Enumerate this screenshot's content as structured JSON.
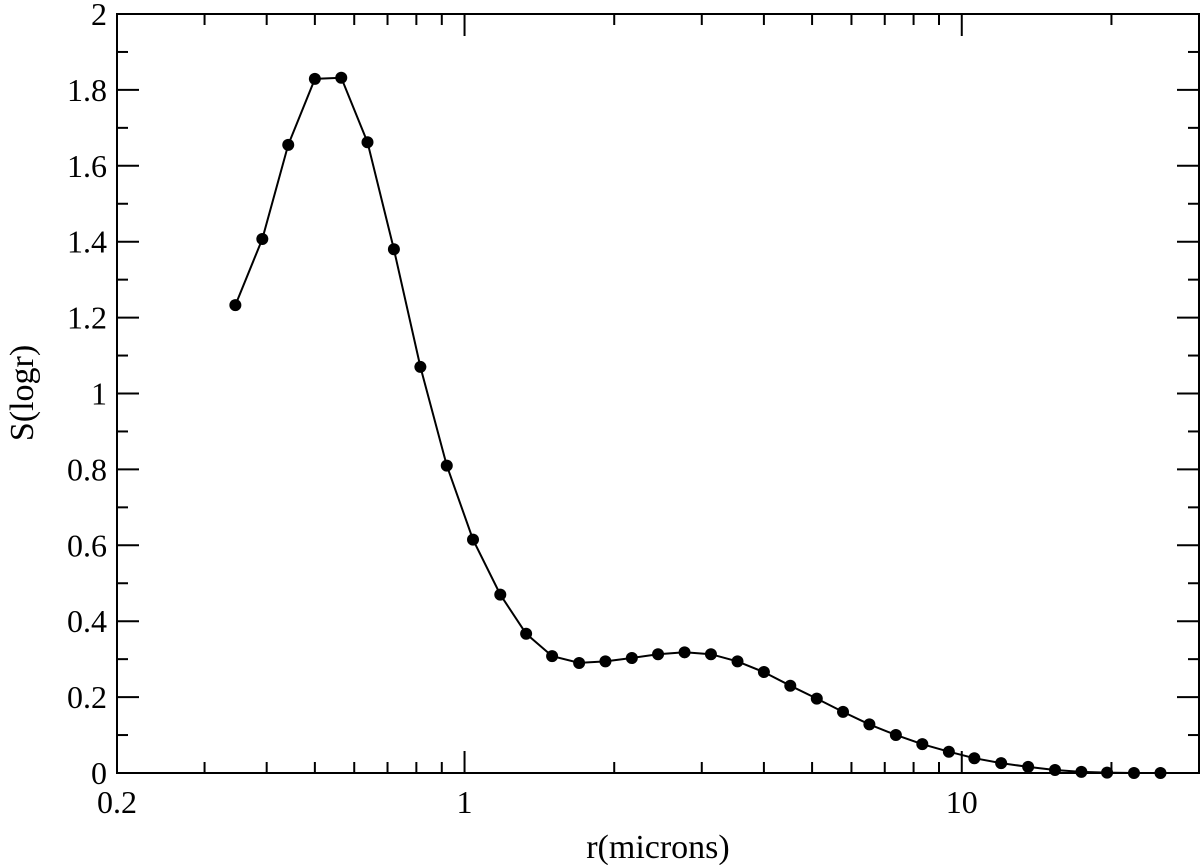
{
  "chart_data": {
    "type": "line",
    "xlabel": "r(microns)",
    "ylabel": "S(logr)",
    "x_scale": "log",
    "xlim": [
      0.2,
      30
    ],
    "ylim": [
      0,
      2
    ],
    "x_tick_labels": [
      {
        "value": 0.2,
        "label": "0.2"
      },
      {
        "value": 1,
        "label": "1"
      },
      {
        "value": 10,
        "label": "10"
      }
    ],
    "y_tick_labels": [
      {
        "value": 0,
        "label": "0"
      },
      {
        "value": 0.2,
        "label": "0.2"
      },
      {
        "value": 0.4,
        "label": "0.4"
      },
      {
        "value": 0.6,
        "label": "0.6"
      },
      {
        "value": 0.8,
        "label": "0.8"
      },
      {
        "value": 1,
        "label": "1"
      },
      {
        "value": 1.2,
        "label": "1.2"
      },
      {
        "value": 1.4,
        "label": "1.4"
      },
      {
        "value": 1.6,
        "label": "1.6"
      },
      {
        "value": 1.8,
        "label": "1.8"
      },
      {
        "value": 2,
        "label": "2"
      }
    ],
    "grid": false,
    "series": [
      {
        "color": "#000000",
        "marker": "circle",
        "x": [
          0.346,
          0.392,
          0.442,
          0.5,
          0.565,
          0.638,
          0.721,
          0.815,
          0.921,
          1.04,
          1.18,
          1.33,
          1.5,
          1.7,
          1.92,
          2.17,
          2.45,
          2.77,
          3.13,
          3.54,
          4.0,
          4.52,
          5.11,
          5.77,
          6.52,
          7.37,
          8.33,
          9.42,
          10.6,
          12.0,
          13.6,
          15.4,
          17.4,
          19.6,
          22.2,
          25.1
        ],
        "y": [
          1.233,
          1.407,
          1.655,
          1.829,
          1.832,
          1.662,
          1.38,
          1.07,
          0.81,
          0.615,
          0.47,
          0.367,
          0.308,
          0.29,
          0.294,
          0.303,
          0.313,
          0.318,
          0.313,
          0.294,
          0.266,
          0.23,
          0.196,
          0.161,
          0.128,
          0.1,
          0.076,
          0.056,
          0.039,
          0.026,
          0.016,
          0.008,
          0.003,
          0.001,
          0.0,
          0.0
        ]
      }
    ]
  }
}
